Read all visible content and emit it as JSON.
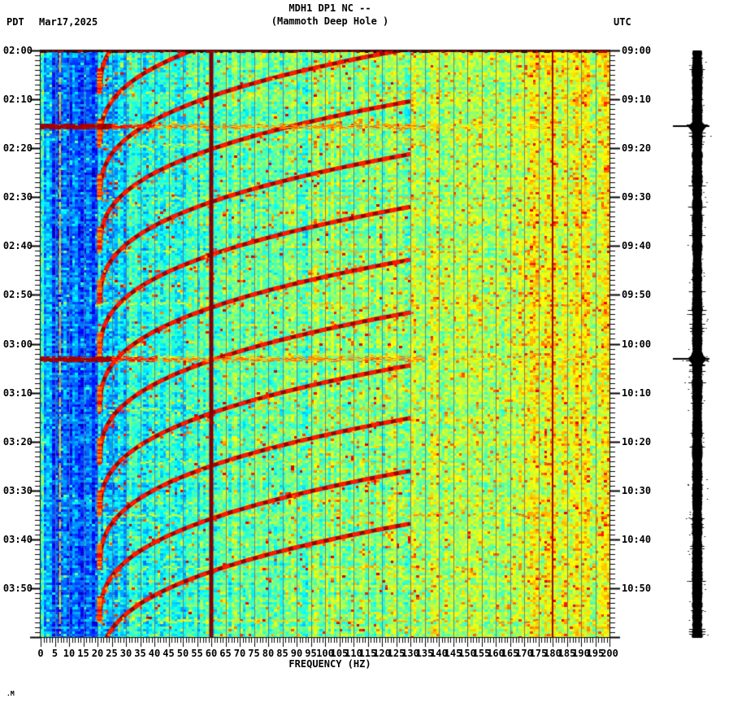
{
  "header": {
    "timezone_left": "PDT",
    "date": "Mar17,2025",
    "title": "MDH1 DP1 NC --",
    "subtitle": "(Mammoth Deep Hole )",
    "timezone_right": "UTC"
  },
  "watermark": ".M",
  "x_axis": {
    "title": "FREQUENCY (HZ)",
    "tick_labels": [
      0,
      5,
      10,
      15,
      20,
      25,
      30,
      35,
      40,
      45,
      50,
      55,
      60,
      65,
      70,
      75,
      80,
      85,
      90,
      95,
      100,
      105,
      110,
      115,
      120,
      125,
      130,
      135,
      140,
      145,
      150,
      155,
      160,
      165,
      170,
      175,
      180,
      185,
      190,
      195,
      200
    ]
  },
  "left_axis_labels": [
    "02:00",
    "02:10",
    "02:20",
    "02:30",
    "02:40",
    "02:50",
    "03:00",
    "03:10",
    "03:20",
    "03:30",
    "03:40",
    "03:50"
  ],
  "right_axis_labels": [
    "09:00",
    "09:10",
    "09:20",
    "09:30",
    "09:40",
    "09:50",
    "10:00",
    "10:10",
    "10:20",
    "10:30",
    "10:40",
    "10:50"
  ],
  "chart_data": {
    "type": "heatmap",
    "subtype": "seismic spectrogram",
    "station": "MDH1 DP1 NC --",
    "station_name": "Mammoth Deep Hole",
    "date_local": "Mar17,2025",
    "local_tz": "PDT",
    "utc_tz": "UTC",
    "xlabel": "FREQUENCY (HZ)",
    "x_range_hz": [
      0,
      200
    ],
    "x_major_tick_hz": 5,
    "x_minor_tick_hz": 1,
    "time_start_local": "02:00",
    "time_end_local": "04:00",
    "time_start_utc": "09:00",
    "time_end_utc": "11:00",
    "duration_min": 120,
    "time_major_tick_min": 10,
    "time_minor_tick_min": 1,
    "colormap": "jet",
    "grid_lines_every_hz": 5,
    "background_levels": [
      {
        "to_hz": 1,
        "v": 0.42
      },
      {
        "to_hz": 4,
        "v": 0.27
      },
      {
        "to_hz": 20,
        "v": 0.22
      },
      {
        "to_hz": 30,
        "v": 0.34
      },
      {
        "to_hz": 60,
        "v": 0.41
      },
      {
        "to_hz": 95,
        "v": 0.46
      },
      {
        "to_hz": 130,
        "v": 0.5
      },
      {
        "to_hz": 165,
        "v": 0.545
      },
      {
        "to_hz": 200,
        "v": 0.585
      }
    ],
    "features": {
      "power_line_hz": 60,
      "power_line_color": "#800000",
      "power_line_harmonic_hz": 180,
      "persistent_tremor_line_hz": 6.8,
      "gliding_harmonic_tremor": {
        "description": "repeating dark-red gliding harmonic arcs descending from ~130 Hz down to ~21 Hz, one cycle about every 11 minutes",
        "period_min": 10.8,
        "first_tip_min": 29.6,
        "freq_low_hz": 21,
        "freq_high_hz": 130,
        "rise_duration_min": 30
      },
      "broadband_events": [
        {
          "time_local": "02:15:30",
          "time_utc": "09:15:30",
          "min_after_start": 15.5
        },
        {
          "time_local": "03:03:00",
          "time_utc": "10:03:00",
          "min_after_start": 63.0
        }
      ],
      "amplitude_trace": {
        "present": true,
        "color": "#000000",
        "description": "saturated vertical amplitude (helicorder) trace at right, event marker lines at broadband events"
      }
    }
  }
}
